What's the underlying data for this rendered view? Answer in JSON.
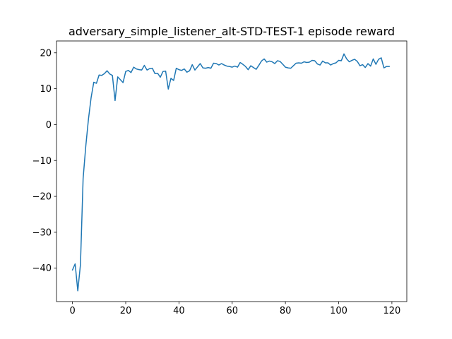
{
  "chart_data": {
    "type": "line",
    "title": "adversary_simple_listener_alt-STD-TEST-1 episode reward",
    "xlabel": "",
    "ylabel": "",
    "xlim": [
      -6,
      125.6
    ],
    "ylim": [
      -49.3,
      23.3
    ],
    "xticks": [
      0,
      20,
      40,
      60,
      80,
      100,
      120
    ],
    "yticks": [
      -40,
      -30,
      -20,
      -10,
      0,
      10,
      20
    ],
    "grid": false,
    "line_color": "#1f77b4",
    "series": [
      {
        "values": [
          -40.5,
          -38.8,
          -46.3,
          -39.0,
          -15.0,
          -6.0,
          1.5,
          7.5,
          11.8,
          11.5,
          13.8,
          13.7,
          14.2,
          15.0,
          14.1,
          13.7,
          6.7,
          13.3,
          12.5,
          11.7,
          14.8,
          15.1,
          14.5,
          16.0,
          15.5,
          15.3,
          15.2,
          16.5,
          15.2,
          15.6,
          15.7,
          14.2,
          14.3,
          13.2,
          14.8,
          14.9,
          9.9,
          12.9,
          12.3,
          15.7,
          15.3,
          15.1,
          15.5,
          14.6,
          15.0,
          16.7,
          15.2,
          16.1,
          17.0,
          15.8,
          15.7,
          15.9,
          15.7,
          17.1,
          17.0,
          16.6,
          17.0,
          16.6,
          16.3,
          16.2,
          16.0,
          16.3,
          16.0,
          17.3,
          16.8,
          16.2,
          15.3,
          16.4,
          15.9,
          15.4,
          16.5,
          17.7,
          18.3,
          17.4,
          17.7,
          17.5,
          17.0,
          17.8,
          17.6,
          16.8,
          16.0,
          15.8,
          15.7,
          16.4,
          17.1,
          17.2,
          17.1,
          17.5,
          17.3,
          17.4,
          17.9,
          17.8,
          16.9,
          16.6,
          17.7,
          17.2,
          17.2,
          16.6,
          17.0,
          17.2,
          17.9,
          17.8,
          19.7,
          18.3,
          17.5,
          17.9,
          18.2,
          17.6,
          16.4,
          16.7,
          15.9,
          17.0,
          16.3,
          18.3,
          16.8,
          18.2,
          18.6,
          15.8,
          16.2,
          16.2
        ]
      }
    ]
  }
}
